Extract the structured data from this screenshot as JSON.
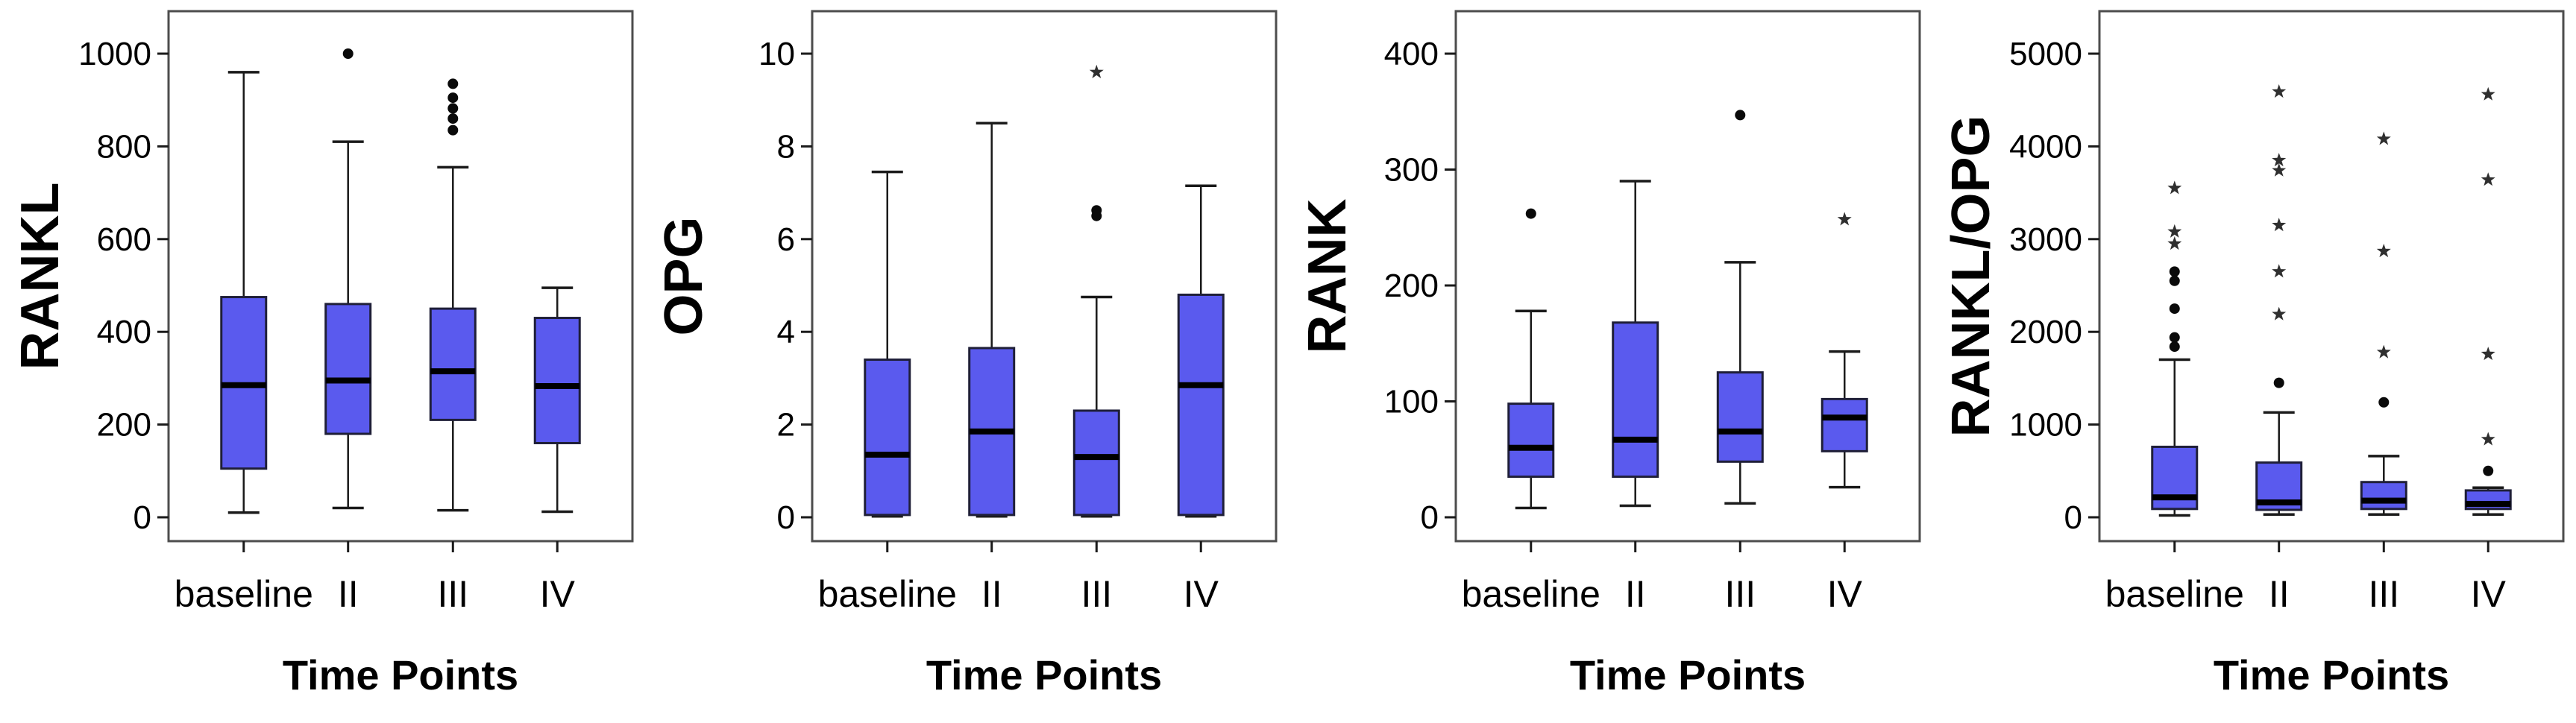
{
  "figure": {
    "background": "#ffffff",
    "box_fill": "#5a5aee",
    "box_stroke": "#1f1f38",
    "median_color": "#000000",
    "whisker_color": "#1a1a1a",
    "frame_color": "#4d4d4d",
    "tick_color": "#1a1a1a",
    "text_color": "#000000",
    "outlier_dot_color": "#0a0a0a",
    "outlier_star_color": "#2f2f2f"
  },
  "chart_data": [
    {
      "type": "boxplot",
      "title": "",
      "ylabel": "RANKL",
      "xlabel": "Time Points",
      "categories": [
        "baseline",
        "II",
        "III",
        "IV"
      ],
      "yticks": [
        0,
        200,
        400,
        600,
        800,
        1000
      ],
      "ylim": [
        -50,
        1090
      ],
      "grid": false,
      "legend": null,
      "boxes": [
        {
          "category": "baseline",
          "whisker_low": 10,
          "q1": 105,
          "median": 285,
          "q3": 475,
          "whisker_high": 960,
          "outlier_dots": [],
          "outlier_stars": []
        },
        {
          "category": "II",
          "whisker_low": 20,
          "q1": 180,
          "median": 295,
          "q3": 460,
          "whisker_high": 810,
          "outlier_dots": [
            1000
          ],
          "outlier_stars": []
        },
        {
          "category": "III",
          "whisker_low": 15,
          "q1": 210,
          "median": 315,
          "q3": 450,
          "whisker_high": 755,
          "outlier_dots": [
            835,
            860,
            882,
            905,
            935
          ],
          "outlier_stars": []
        },
        {
          "category": "IV",
          "whisker_low": 12,
          "q1": 160,
          "median": 283,
          "q3": 430,
          "whisker_high": 495,
          "outlier_dots": [],
          "outlier_stars": []
        }
      ]
    },
    {
      "type": "boxplot",
      "title": "",
      "ylabel": "OPG",
      "xlabel": "Time Points",
      "categories": [
        "baseline",
        "II",
        "III",
        "IV"
      ],
      "yticks": [
        0,
        2,
        4,
        6,
        8,
        10
      ],
      "ylim": [
        -0.5,
        10.9
      ],
      "grid": false,
      "legend": null,
      "boxes": [
        {
          "category": "baseline",
          "whisker_low": 0.02,
          "q1": 0.05,
          "median": 1.35,
          "q3": 3.4,
          "whisker_high": 7.45,
          "outlier_dots": [],
          "outlier_stars": []
        },
        {
          "category": "II",
          "whisker_low": 0.02,
          "q1": 0.05,
          "median": 1.85,
          "q3": 3.65,
          "whisker_high": 8.5,
          "outlier_dots": [],
          "outlier_stars": []
        },
        {
          "category": "III",
          "whisker_low": 0.02,
          "q1": 0.05,
          "median": 1.3,
          "q3": 2.3,
          "whisker_high": 4.75,
          "outlier_dots": [
            6.5,
            6.62
          ],
          "outlier_stars": [
            9.6
          ]
        },
        {
          "category": "IV",
          "whisker_low": 0.02,
          "q1": 0.05,
          "median": 2.85,
          "q3": 4.8,
          "whisker_high": 7.15,
          "outlier_dots": [],
          "outlier_stars": []
        }
      ]
    },
    {
      "type": "boxplot",
      "title": "",
      "ylabel": "RANK",
      "xlabel": "Time Points",
      "categories": [
        "baseline",
        "II",
        "III",
        "IV"
      ],
      "yticks": [
        0,
        100,
        200,
        300,
        400
      ],
      "ylim": [
        -25,
        425
      ],
      "grid": false,
      "legend": null,
      "boxes": [
        {
          "category": "baseline",
          "whisker_low": 8,
          "q1": 35,
          "median": 60,
          "q3": 98,
          "whisker_high": 178,
          "outlier_dots": [
            262
          ],
          "outlier_stars": []
        },
        {
          "category": "II",
          "whisker_low": 10,
          "q1": 35,
          "median": 67,
          "q3": 168,
          "whisker_high": 290,
          "outlier_dots": [],
          "outlier_stars": []
        },
        {
          "category": "III",
          "whisker_low": 12,
          "q1": 48,
          "median": 74,
          "q3": 125,
          "whisker_high": 220,
          "outlier_dots": [
            347
          ],
          "outlier_stars": []
        },
        {
          "category": "IV",
          "whisker_low": 26,
          "q1": 57,
          "median": 86,
          "q3": 102,
          "whisker_high": 143,
          "outlier_dots": [],
          "outlier_stars": [
            257
          ]
        }
      ]
    },
    {
      "type": "boxplot",
      "title": "",
      "ylabel": "RANKL/OPG",
      "xlabel": "Time Points",
      "categories": [
        "baseline",
        "II",
        "III",
        "IV"
      ],
      "yticks": [
        0,
        1000,
        2000,
        3000,
        4000,
        5000
      ],
      "ylim": [
        -300,
        5450
      ],
      "grid": false,
      "legend": null,
      "boxes": [
        {
          "category": "baseline",
          "whisker_low": 20,
          "q1": 90,
          "median": 215,
          "q3": 760,
          "whisker_high": 1700,
          "outlier_dots": [
            1840,
            1940,
            2250,
            2550,
            2650
          ],
          "outlier_stars": [
            2950,
            3080,
            3550
          ]
        },
        {
          "category": "II",
          "whisker_low": 30,
          "q1": 80,
          "median": 160,
          "q3": 590,
          "whisker_high": 1130,
          "outlier_dots": [
            1450
          ],
          "outlier_stars": [
            2190,
            2650,
            3150,
            3740,
            3850,
            4590
          ]
        },
        {
          "category": "III",
          "whisker_low": 30,
          "q1": 90,
          "median": 180,
          "q3": 380,
          "whisker_high": 660,
          "outlier_dots": [
            1240
          ],
          "outlier_stars": [
            1780,
            2870,
            4080
          ]
        },
        {
          "category": "IV",
          "whisker_low": 30,
          "q1": 90,
          "median": 145,
          "q3": 290,
          "whisker_high": 320,
          "outlier_dots": [
            500
          ],
          "outlier_stars": [
            840,
            1760,
            3640,
            4560
          ]
        }
      ]
    }
  ]
}
